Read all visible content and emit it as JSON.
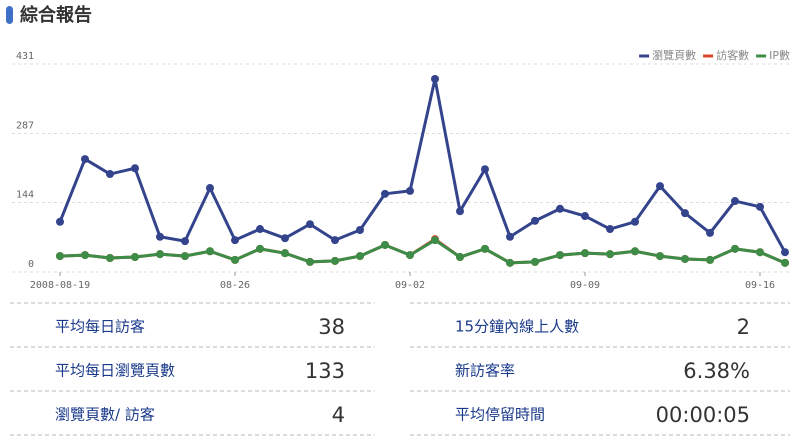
{
  "header": {
    "title": "綜合報告"
  },
  "chart_data": {
    "type": "line",
    "x": [
      "2008-08-19",
      "2008-08-20",
      "2008-08-21",
      "2008-08-22",
      "2008-08-23",
      "2008-08-24",
      "2008-08-25",
      "2008-08-26",
      "2008-08-27",
      "2008-08-28",
      "2008-08-29",
      "2008-08-30",
      "2008-08-31",
      "2008-09-01",
      "2008-09-02",
      "2008-09-03",
      "2008-09-04",
      "2008-09-05",
      "2008-09-06",
      "2008-09-07",
      "2008-09-08",
      "2008-09-09",
      "2008-09-10",
      "2008-09-11",
      "2008-09-12",
      "2008-09-13",
      "2008-09-14",
      "2008-09-15",
      "2008-09-16",
      "2008-09-17"
    ],
    "xlim": [
      "2008-08-19",
      "2008-09-17"
    ],
    "xticks": [
      "2008-08-19",
      {
        "value": "2008-08-26",
        "label": "08-26"
      },
      {
        "value": "2008-09-02",
        "label": "09-02"
      },
      {
        "value": "2008-09-09",
        "label": "09-09"
      },
      {
        "value": "2008-09-16",
        "label": "09-16"
      }
    ],
    "ylim": [
      0,
      431
    ],
    "yticks": [
      0,
      144,
      287,
      431
    ],
    "grid": true,
    "legend": "top-right",
    "series": [
      {
        "name": "瀏覽頁數",
        "color": "#34448c",
        "values": [
          104,
          234,
          203,
          215,
          73,
          64,
          174,
          66,
          89,
          70,
          99,
          66,
          87,
          162,
          168,
          400,
          126,
          213,
          73,
          106,
          131,
          116,
          89,
          104,
          178,
          122,
          81,
          147,
          135,
          41
        ]
      },
      {
        "name": "訪客數",
        "color": "#d9452b",
        "values": [
          33,
          35,
          29,
          31,
          37,
          33,
          43,
          25,
          48,
          39,
          21,
          23,
          33,
          56,
          35,
          68,
          31,
          48,
          19,
          21,
          35,
          39,
          37,
          43,
          33,
          27,
          25,
          48,
          41,
          19
        ]
      },
      {
        "name": "IP數",
        "color": "#3d8c48",
        "values": [
          33,
          35,
          29,
          31,
          37,
          33,
          43,
          25,
          48,
          39,
          21,
          23,
          33,
          56,
          35,
          66,
          31,
          48,
          19,
          21,
          35,
          39,
          37,
          43,
          33,
          27,
          25,
          48,
          41,
          19
        ]
      }
    ]
  },
  "stats": {
    "rows": [
      [
        {
          "label": "平均每日訪客",
          "value": "38"
        },
        {
          "label": "15分鐘內線上人數",
          "value": "2"
        }
      ],
      [
        {
          "label": "平均每日瀏覽頁數",
          "value": "133"
        },
        {
          "label": "新訪客率",
          "value": "6.38%"
        }
      ],
      [
        {
          "label": "瀏覽頁數/ 訪客",
          "value": "4"
        },
        {
          "label": "平均停留時間",
          "value": "00:00:05"
        }
      ]
    ]
  }
}
